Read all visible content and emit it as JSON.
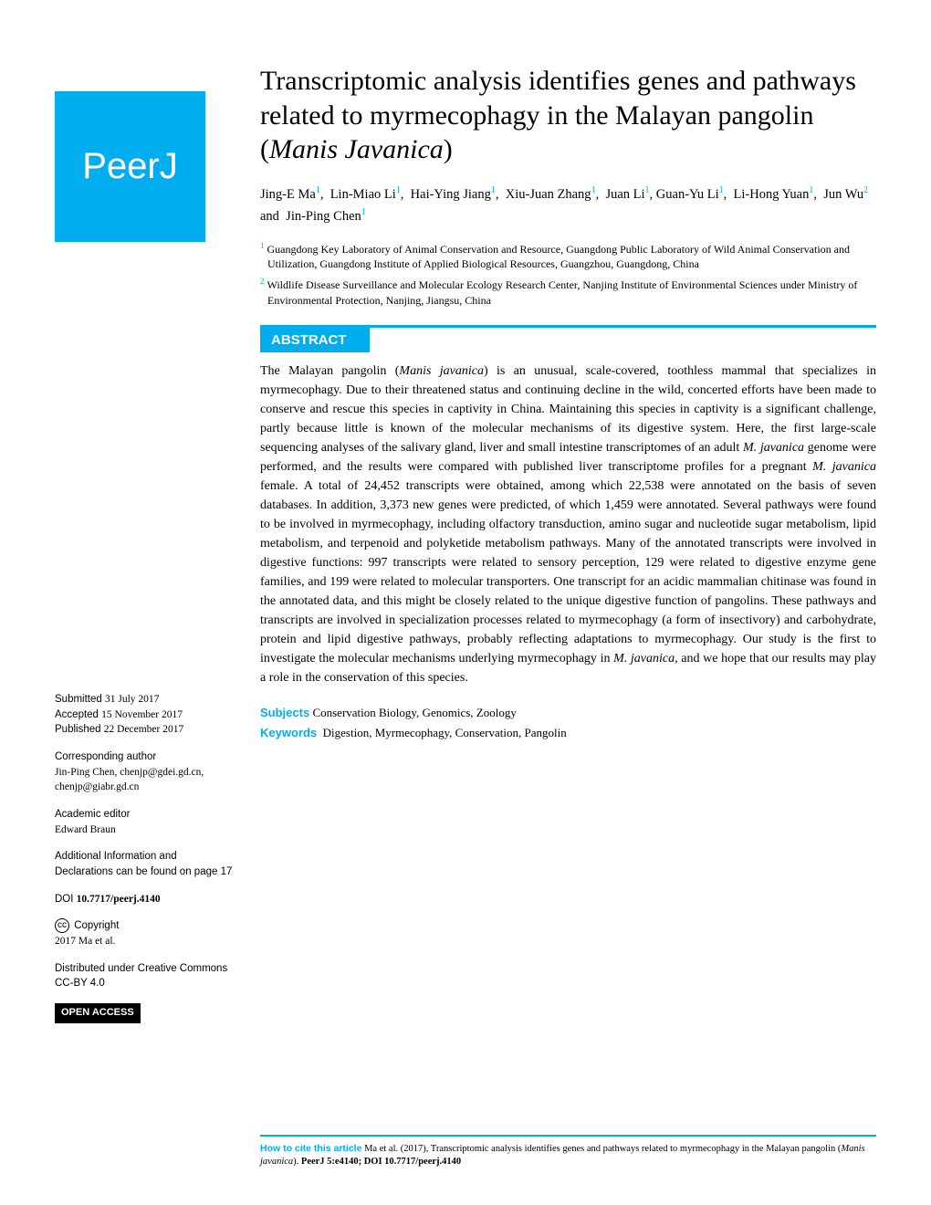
{
  "logo": {
    "text": "PeerJ"
  },
  "title": {
    "full": "Transcriptomic analysis identifies genes and pathways related to myrmecophagy in the Malayan pangolin (Manis Javanica)",
    "plain_part": "Transcriptomic analysis identifies genes and pathways related to myrmecophagy in the Malayan pangolin (",
    "italic_part": "Manis Javanica",
    "close": ")"
  },
  "authors_html": "Jing-E Ma<sup>1</sup>, &nbsp;Lin-Miao Li<sup>1</sup>, &nbsp;Hai-Ying Jiang<sup>1</sup>, &nbsp;Xiu-Juan Zhang<sup>1</sup>, &nbsp;Juan Li<sup>1</sup>, Guan-Yu Li<sup>1</sup>, &nbsp;Li-Hong Yuan<sup>1</sup>, &nbsp;Jun Wu<sup>2</sup> and &nbsp;Jin-Ping Chen<sup>1</sup>",
  "affiliations": [
    {
      "num": "1",
      "text": "Guangdong Key Laboratory of Animal Conservation and Resource, Guangdong Public Laboratory of Wild Animal Conservation and Utilization, Guangdong Institute of Applied Biological Resources, Guangzhou, Guangdong, China"
    },
    {
      "num": "2",
      "text": "Wildlife Disease Surveillance and Molecular Ecology Research Center, Nanjing Institute of Environmental Sciences under Ministry of Environmental Protection, Nanjing, Jiangsu, China"
    }
  ],
  "abstract": {
    "header": "ABSTRACT",
    "text": "The Malayan pangolin (<span class=\"italic\">Manis javanica</span>) is an unusual, scale-covered, toothless mammal that specializes in myrmecophagy. Due to their threatened status and continuing decline in the wild, concerted efforts have been made to conserve and rescue this species in captivity in China. Maintaining this species in captivity is a significant challenge, partly because little is known of the molecular mechanisms of its digestive system. Here, the first large-scale sequencing analyses of the salivary gland, liver and small intestine transcriptomes of an adult <span class=\"italic\">M. javanica</span> genome were performed, and the results were compared with published liver transcriptome profiles for a pregnant <span class=\"italic\">M. javanica</span> female. A total of 24,452 transcripts were obtained, among which 22,538 were annotated on the basis of seven databases. In addition, 3,373 new genes were predicted, of which 1,459 were annotated. Several pathways were found to be involved in myrmecophagy, including olfactory transduction, amino sugar and nucleotide sugar metabolism, lipid metabolism, and terpenoid and polyketide metabolism pathways. Many of the annotated transcripts were involved in digestive functions: 997 transcripts were related to sensory perception, 129 were related to digestive enzyme gene families, and 199 were related to molecular transporters. One transcript for an acidic mammalian chitinase was found in the annotated data, and this might be closely related to the unique digestive function of pangolins. These pathways and transcripts are involved in specialization processes related to myrmecophagy (a form of insectivory) and carbohydrate, protein and lipid digestive pathways, probably reflecting adaptations to myrmecophagy. Our study is the first to investigate the molecular mechanisms underlying myrmecophagy in <span class=\"italic\">M. javanica,</span> and we hope that our results may play a role in the conservation of this species."
  },
  "subjects": {
    "label": "Subjects",
    "text": "Conservation Biology, Genomics, Zoology"
  },
  "keywords": {
    "label": "Keywords",
    "text": "Digestion, Myrmecophagy, Conservation, Pangolin"
  },
  "sidebar": {
    "submitted_label": "Submitted",
    "submitted_value": "31 July 2017",
    "accepted_label": "Accepted",
    "accepted_value": "15 November 2017",
    "published_label": "Published",
    "published_value": "22 December 2017",
    "corresponding_label": "Corresponding author",
    "corresponding_value": "Jin-Ping Chen, chenjp@gdei.gd.cn, chenjp@giabr.gd.cn",
    "editor_label": "Academic editor",
    "editor_value": "Edward Braun",
    "additional_info": "Additional Information and Declarations can be found on page 17",
    "doi_label": "DOI",
    "doi_value": "10.7717/peerj.4140",
    "copyright_label": "Copyright",
    "copyright_value": "2017 Ma et al.",
    "distributed": "Distributed under Creative Commons CC-BY 4.0",
    "open_access": "OPEN ACCESS"
  },
  "citation": {
    "label": "How to cite this article",
    "text": "Ma et al. (2017), Transcriptomic analysis identifies genes and pathways related to myrmecophagy in the Malayan pangolin (",
    "italic": "Manis javanica",
    "close": "). ",
    "bold": "PeerJ 5:e4140; DOI 10.7717/peerj.4140"
  },
  "colors": {
    "brand": "#00aef0",
    "black": "#000000",
    "white": "#ffffff"
  }
}
